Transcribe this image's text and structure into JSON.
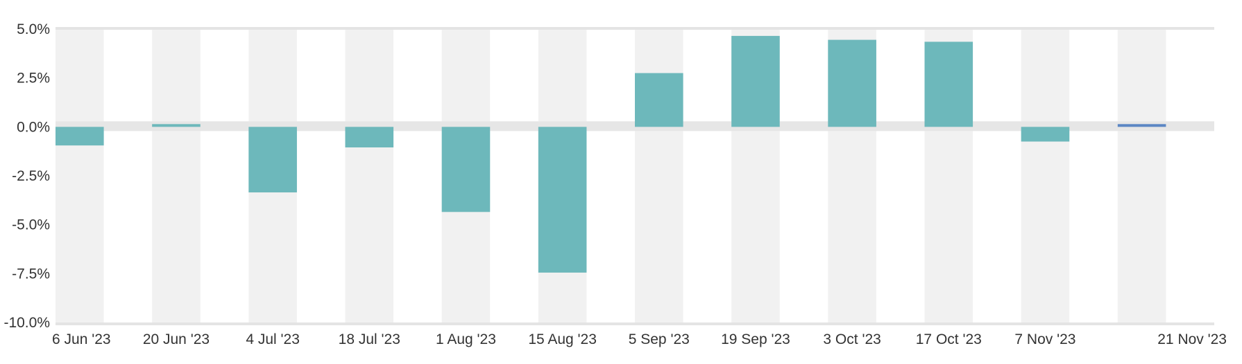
{
  "chart_data": {
    "type": "bar",
    "title": "",
    "xlabel": "",
    "ylabel": "",
    "categories": [
      "6 Jun '23",
      "20 Jun '23",
      "4 Jul '23",
      "18 Jul '23",
      "1 Aug '23",
      "15 Aug '23",
      "5 Sep '23",
      "19 Sep '23",
      "3 Oct '23",
      "17 Oct '23",
      "7 Nov '23",
      "21 Nov '23"
    ],
    "values": [
      -0.95,
      0.1,
      -3.35,
      -1.05,
      -4.35,
      -7.45,
      2.75,
      4.65,
      4.45,
      4.35,
      -0.75,
      0.1
    ],
    "ylim": [
      -10,
      5
    ],
    "yticks": [
      5,
      2.5,
      0,
      -2.5,
      -5,
      -7.5,
      -10
    ],
    "ytick_labels": [
      "5.0%",
      "2.5%",
      "0.0%",
      "-2.5%",
      "-5.0%",
      "-7.5%",
      "-10.0%"
    ],
    "grid": "alternating vertical bands",
    "bar_color": "#6db8bb",
    "last_bar_color": "#5b86c4",
    "band_color": "#f1f1f1",
    "axis_color": "#e4e4e4"
  }
}
